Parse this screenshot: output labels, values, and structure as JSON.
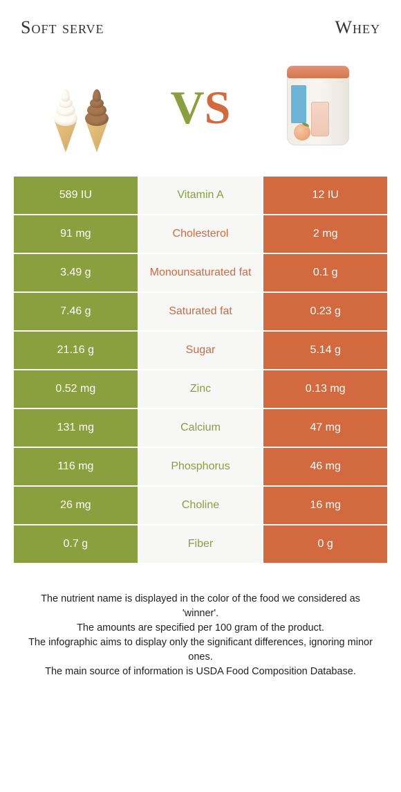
{
  "left": {
    "title": "Soft serve"
  },
  "right": {
    "title": "Whey"
  },
  "colors": {
    "left": "#8a9f3e",
    "right": "#d36a3f",
    "mid_bg": "#f7f7f5",
    "text_white": "#ffffff"
  },
  "rows": [
    {
      "nutrient": "Vitamin A",
      "left": "589 IU",
      "right": "12 IU",
      "winner": "left"
    },
    {
      "nutrient": "Cholesterol",
      "left": "91 mg",
      "right": "2 mg",
      "winner": "right"
    },
    {
      "nutrient": "Monounsaturated fat",
      "left": "3.49 g",
      "right": "0.1 g",
      "winner": "right"
    },
    {
      "nutrient": "Saturated fat",
      "left": "7.46 g",
      "right": "0.23 g",
      "winner": "right"
    },
    {
      "nutrient": "Sugar",
      "left": "21.16 g",
      "right": "5.14 g",
      "winner": "right"
    },
    {
      "nutrient": "Zinc",
      "left": "0.52 mg",
      "right": "0.13 mg",
      "winner": "left"
    },
    {
      "nutrient": "Calcium",
      "left": "131 mg",
      "right": "47 mg",
      "winner": "left"
    },
    {
      "nutrient": "Phosphorus",
      "left": "116 mg",
      "right": "46 mg",
      "winner": "left"
    },
    {
      "nutrient": "Choline",
      "left": "26 mg",
      "right": "16 mg",
      "winner": "left"
    },
    {
      "nutrient": "Fiber",
      "left": "0.7 g",
      "right": "0 g",
      "winner": "left"
    }
  ],
  "footer": {
    "line1": "The nutrient name is displayed in the color of the food we considered as 'winner'.",
    "line2": "The amounts are specified per 100 gram of the product.",
    "line3": "The infographic aims to display only the significant differences, ignoring minor ones.",
    "line4": "The main source of information is USDA Food Composition Database."
  }
}
